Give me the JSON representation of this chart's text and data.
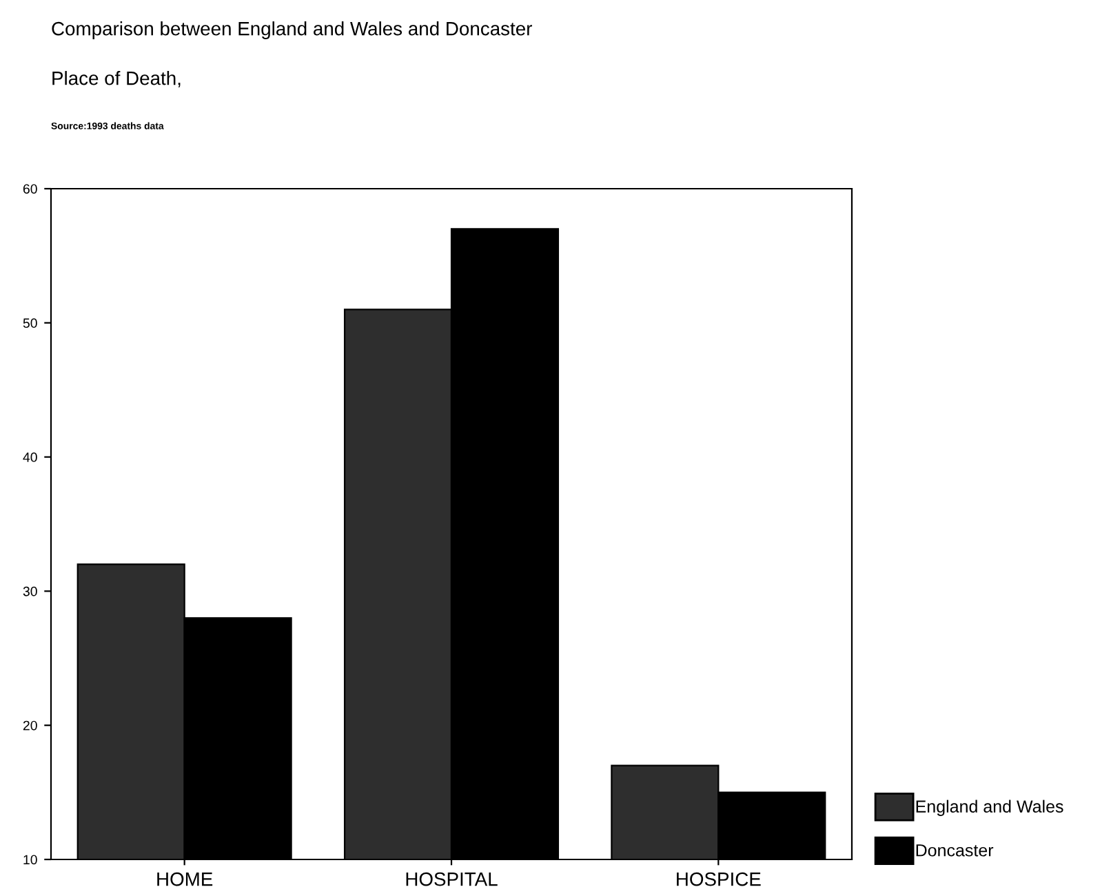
{
  "chart_data": {
    "type": "bar",
    "title": "Comparison between England and Wales and Doncaster",
    "subtitle": "Place of Death,",
    "annotations": [
      "Source:1993 deaths data"
    ],
    "categories": [
      "HOME",
      "HOSPITAL",
      "HOSPICE"
    ],
    "series": [
      {
        "name": "England and Wales",
        "color": "#2e2e2e",
        "values": [
          32,
          51,
          17
        ]
      },
      {
        "name": "Doncaster",
        "color": "#000000",
        "values": [
          28,
          57,
          15
        ]
      }
    ],
    "ylim": [
      10,
      60
    ],
    "yticks": [
      10,
      20,
      30,
      40,
      50,
      60
    ],
    "grid": false,
    "legend": "bottom right"
  }
}
